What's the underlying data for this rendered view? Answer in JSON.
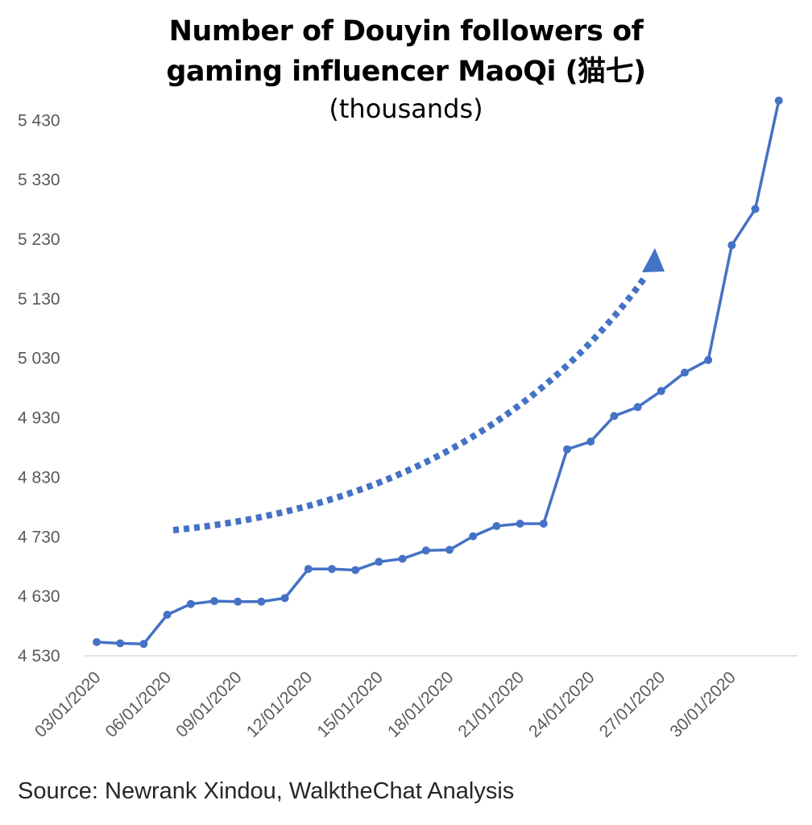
{
  "chart_data": {
    "type": "line",
    "title_line1": "Number of Douyin followers of",
    "title_line2": "gaming influencer MaoQi (猫七)",
    "subtitle": "(thousands)",
    "source": "Source: Newrank Xindou, WalktheChat Analysis",
    "ylim": [
      4530,
      5490
    ],
    "y_ticks": [
      "4 530",
      "4 630",
      "4 730",
      "4 830",
      "4 930",
      "5 030",
      "5 130",
      "5 230",
      "5 330",
      "5 430"
    ],
    "y_tick_values": [
      4530,
      4630,
      4730,
      4830,
      4930,
      5030,
      5130,
      5230,
      5330,
      5430
    ],
    "x_tick_labels": [
      "03/01/2020",
      "06/01/2020",
      "09/01/2020",
      "12/01/2020",
      "15/01/2020",
      "18/01/2020",
      "21/01/2020",
      "24/01/2020",
      "27/01/2020",
      "30/01/2020"
    ],
    "x": [
      "03/01/2020",
      "04/01/2020",
      "05/01/2020",
      "06/01/2020",
      "07/01/2020",
      "08/01/2020",
      "09/01/2020",
      "10/01/2020",
      "11/01/2020",
      "12/01/2020",
      "13/01/2020",
      "14/01/2020",
      "15/01/2020",
      "16/01/2020",
      "17/01/2020",
      "18/01/2020",
      "19/01/2020",
      "20/01/2020",
      "21/01/2020",
      "22/01/2020",
      "23/01/2020",
      "24/01/2020",
      "25/01/2020",
      "26/01/2020",
      "27/01/2020",
      "28/01/2020",
      "29/01/2020",
      "30/01/2020",
      "31/01/2020",
      "01/02/2020"
    ],
    "series": [
      {
        "values": [
          4553,
          4551,
          4550,
          4599,
          4617,
          4622,
          4621,
          4621,
          4627,
          4676,
          4676,
          4674,
          4688,
          4693,
          4707,
          4708,
          4731,
          4748,
          4752,
          4752,
          4877,
          4890,
          4933,
          4948,
          4975,
          5006,
          5027,
          5220,
          5281,
          5463
        ],
        "color": "#4472C4"
      }
    ],
    "trend_arrow": {
      "style": "dotted",
      "color": "#4472C4",
      "direction": "up-right"
    },
    "grid": false,
    "legend": "none"
  }
}
